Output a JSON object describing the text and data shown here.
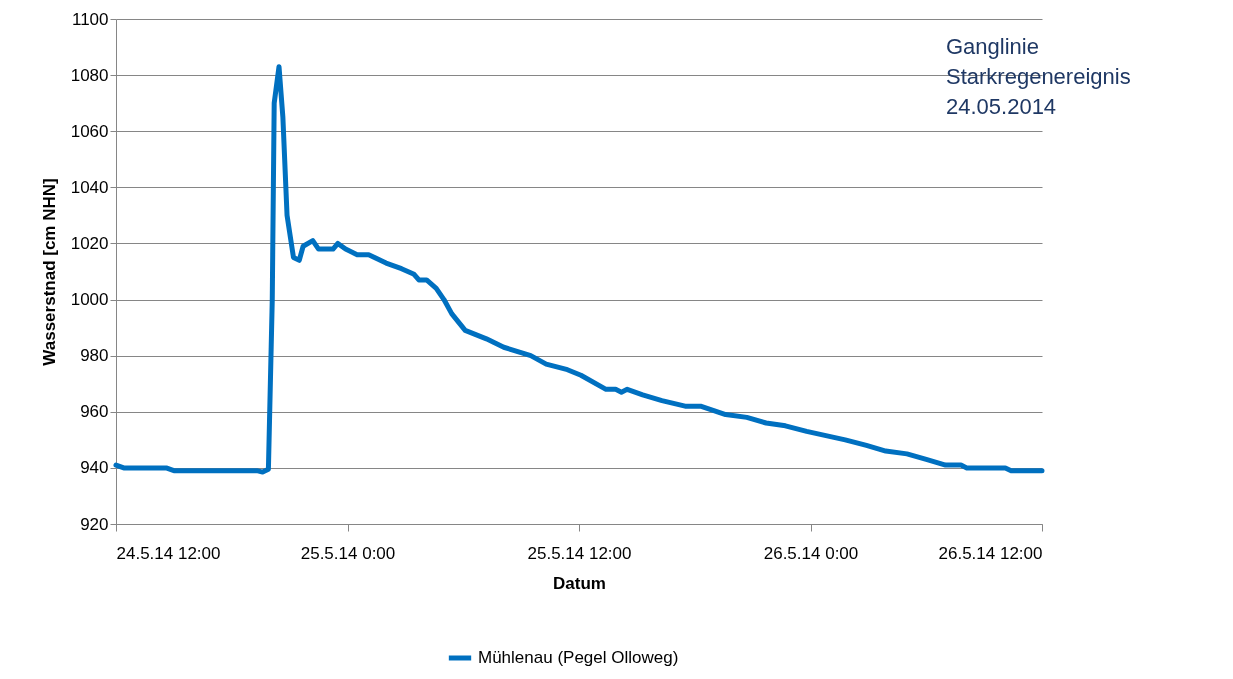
{
  "chart_data": {
    "type": "line",
    "xlabel": "Datum",
    "ylabel": "Wasserstnad [cm NHN]",
    "annotations": [
      "Ganglinie\nStarkregenereignis\n24.05.2014"
    ],
    "x": [
      "2014-05-24T12:00",
      "2014-05-24T12:24",
      "2014-05-24T14:36",
      "2014-05-24T15:00",
      "2014-05-24T19:18",
      "2014-05-24T19:36",
      "2014-05-24T19:54",
      "2014-05-24T20:06",
      "2014-05-24T20:12",
      "2014-05-24T20:27",
      "2014-05-24T20:39",
      "2014-05-24T20:52",
      "2014-05-24T21:12",
      "2014-05-24T21:30",
      "2014-05-24T21:42",
      "2014-05-24T22:12",
      "2014-05-24T22:30",
      "2014-05-24T23:15",
      "2014-05-24T23:30",
      "2014-05-24T23:54",
      "2014-05-25T00:30",
      "2014-05-25T01:06",
      "2014-05-25T02:00",
      "2014-05-25T02:48",
      "2014-05-25T03:27",
      "2014-05-25T03:42",
      "2014-05-25T04:06",
      "2014-05-25T04:36",
      "2014-05-25T05:00",
      "2014-05-25T05:24",
      "2014-05-25T06:06",
      "2014-05-25T07:12",
      "2014-05-25T08:06",
      "2014-05-25T09:30",
      "2014-05-25T10:18",
      "2014-05-25T11:24",
      "2014-05-25T12:06",
      "2014-05-25T13:24",
      "2014-05-25T13:54",
      "2014-05-25T14:12",
      "2014-05-25T14:30",
      "2014-05-25T15:18",
      "2014-05-25T16:18",
      "2014-05-25T17:30",
      "2014-05-25T18:18",
      "2014-05-25T19:36",
      "2014-05-25T20:42",
      "2014-05-25T21:42",
      "2014-05-25T22:42",
      "2014-05-25T23:48",
      "2014-05-26T01:48",
      "2014-05-26T02:54",
      "2014-05-26T03:54",
      "2014-05-26T05:00",
      "2014-05-26T06:00",
      "2014-05-26T07:00",
      "2014-05-26T07:48",
      "2014-05-26T08:06",
      "2014-05-26T10:06",
      "2014-05-26T10:24",
      "2014-05-26T12:00"
    ],
    "series": [
      {
        "name": "Mühlenau (Pegel Olloweg)",
        "color": "#0070c0",
        "values": [
          941,
          940,
          940,
          939,
          939,
          938.5,
          939.5,
          1000,
          1070,
          1083,
          1065,
          1030,
          1015,
          1014,
          1019,
          1021,
          1018,
          1018,
          1020,
          1018,
          1016,
          1016,
          1013,
          1011,
          1009,
          1007,
          1007,
          1004,
          1000,
          995,
          989,
          986,
          983,
          980,
          977,
          975,
          973,
          968,
          968,
          967,
          968,
          966,
          964,
          962,
          962,
          959,
          958,
          956,
          955,
          953,
          950,
          948,
          946,
          945,
          943,
          941,
          941,
          940,
          940,
          939,
          939
        ]
      }
    ],
    "xlim": [
      "2014-05-24T12:00",
      "2014-05-26T12:00"
    ],
    "xticks": [
      {
        "value": "2014-05-24T12:00",
        "label": "24.5.14 12:00"
      },
      {
        "value": "2014-05-25T00:00",
        "label": "25.5.14 0:00"
      },
      {
        "value": "2014-05-25T12:00",
        "label": "25.5.14 12:00"
      },
      {
        "value": "2014-05-26T00:00",
        "label": "26.5.14 0:00"
      },
      {
        "value": "2014-05-26T12:00",
        "label": "26.5.14 12:00"
      }
    ],
    "ylim": [
      920,
      1100
    ],
    "yticks": [
      920,
      940,
      960,
      980,
      1000,
      1020,
      1040,
      1060,
      1080,
      1100
    ],
    "grid": "y",
    "legend": "bottom",
    "marker": "none",
    "line_style": "solid"
  }
}
